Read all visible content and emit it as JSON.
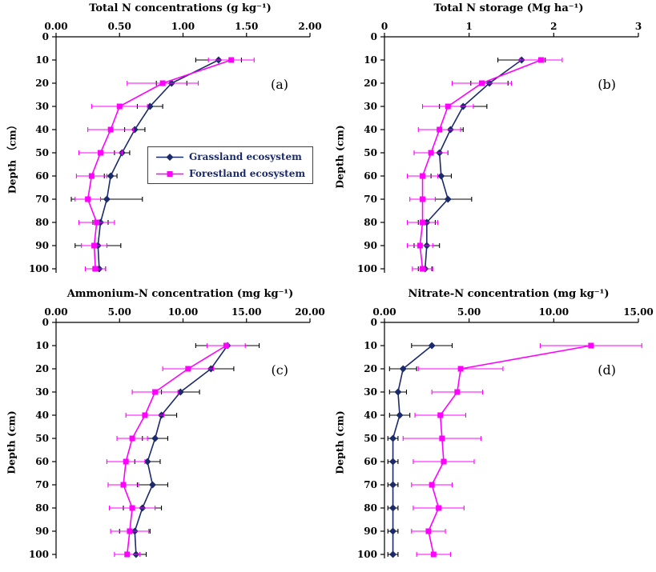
{
  "colors": {
    "grassland": "#1b2a6b",
    "forestland": "#ff00ff",
    "legend_text": "#1b2a6b",
    "axis": "#000000"
  },
  "chart_data": [
    {
      "type": "line",
      "panel_label": "(a)",
      "title": "Total N concentrations (g kg⁻¹)",
      "ylabel": "Depth （cm）",
      "xlim": [
        0,
        2
      ],
      "xticks": [
        {
          "v": 0,
          "label": "0.00"
        },
        {
          "v": 0.5,
          "label": "0.50"
        },
        {
          "v": 1,
          "label": "1.00"
        },
        {
          "v": 1.5,
          "label": "1.50"
        },
        {
          "v": 2,
          "label": "2.00"
        }
      ],
      "yticks": [
        0,
        10,
        20,
        30,
        40,
        50,
        60,
        70,
        80,
        90,
        100
      ],
      "depths": [
        10,
        20,
        30,
        40,
        50,
        60,
        70,
        80,
        90,
        100
      ],
      "series": [
        {
          "name": "Grassland ecosystem",
          "marker": "diamond",
          "color": "#1b2a6b",
          "error_color": "#000000",
          "values": [
            1.28,
            0.91,
            0.74,
            0.62,
            0.52,
            0.43,
            0.4,
            0.35,
            0.33,
            0.34
          ],
          "errors": [
            0.18,
            0.12,
            0.1,
            0.08,
            0.06,
            0.05,
            0.28,
            0.06,
            0.18,
            0.05
          ]
        },
        {
          "name": "Forestland ecosystem",
          "marker": "square",
          "color": "#ff00ff",
          "error_color": "#ff00ff",
          "values": [
            1.38,
            0.84,
            0.5,
            0.43,
            0.35,
            0.28,
            0.25,
            0.32,
            0.3,
            0.31
          ],
          "errors": [
            0.18,
            0.28,
            0.22,
            0.18,
            0.17,
            0.12,
            0.1,
            0.14,
            0.1,
            0.08
          ]
        }
      ]
    },
    {
      "type": "line",
      "panel_label": "(b)",
      "title": "Total N storage (Mg ha⁻¹)",
      "ylabel": "Depth (cm)",
      "xlim": [
        0,
        3
      ],
      "xticks": [
        {
          "v": 0,
          "label": "0"
        },
        {
          "v": 1,
          "label": "1"
        },
        {
          "v": 2,
          "label": "2"
        },
        {
          "v": 3,
          "label": "3"
        }
      ],
      "yticks": [
        0,
        10,
        20,
        30,
        40,
        50,
        60,
        70,
        80,
        90,
        100
      ],
      "depths": [
        10,
        20,
        30,
        40,
        50,
        60,
        70,
        80,
        90,
        100
      ],
      "series": [
        {
          "name": "Grassland ecosystem",
          "marker": "diamond",
          "color": "#1b2a6b",
          "error_color": "#000000",
          "values": [
            1.62,
            1.24,
            0.93,
            0.78,
            0.65,
            0.67,
            0.75,
            0.5,
            0.5,
            0.48
          ],
          "errors": [
            0.28,
            0.22,
            0.28,
            0.15,
            0.1,
            0.12,
            0.28,
            0.1,
            0.15,
            0.08
          ]
        },
        {
          "name": "Forestland ecosystem",
          "marker": "square",
          "color": "#ff00ff",
          "error_color": "#ff00ff",
          "values": [
            1.85,
            1.15,
            0.75,
            0.65,
            0.55,
            0.45,
            0.45,
            0.45,
            0.42,
            0.45
          ],
          "errors": [
            0.25,
            0.35,
            0.3,
            0.25,
            0.2,
            0.18,
            0.15,
            0.18,
            0.15,
            0.12
          ]
        }
      ]
    },
    {
      "type": "line",
      "panel_label": "(c)",
      "title": "Ammonium-N concentration (mg kg⁻¹)",
      "ylabel": "Depth (cm)",
      "xlim": [
        0,
        20
      ],
      "xticks": [
        {
          "v": 0,
          "label": "0.00"
        },
        {
          "v": 5,
          "label": "5.00"
        },
        {
          "v": 10,
          "label": "10.00"
        },
        {
          "v": 15,
          "label": "15.00"
        },
        {
          "v": 20,
          "label": "20.00"
        }
      ],
      "yticks": [
        0,
        10,
        20,
        30,
        40,
        50,
        60,
        70,
        80,
        90,
        100
      ],
      "depths": [
        10,
        20,
        30,
        40,
        50,
        60,
        70,
        80,
        90,
        100
      ],
      "series": [
        {
          "name": "Grassland ecosystem",
          "marker": "diamond",
          "color": "#1b2a6b",
          "error_color": "#000000",
          "values": [
            13.5,
            12.2,
            9.8,
            8.3,
            7.8,
            7.2,
            7.6,
            6.8,
            6.2,
            6.3
          ],
          "errors": [
            2.5,
            1.8,
            1.5,
            1.2,
            1.0,
            1.0,
            1.2,
            1.5,
            1.2,
            0.8
          ]
        },
        {
          "name": "Forestland ecosystem",
          "marker": "square",
          "color": "#ff00ff",
          "error_color": "#ff00ff",
          "values": [
            13.4,
            10.4,
            7.8,
            7.0,
            6.0,
            5.5,
            5.3,
            6.0,
            5.8,
            5.6
          ],
          "errors": [
            1.5,
            2.0,
            1.8,
            1.5,
            1.2,
            1.5,
            1.2,
            1.8,
            1.5,
            1.0
          ]
        }
      ]
    },
    {
      "type": "line",
      "panel_label": "(d)",
      "title": "Nitrate-N concentration (mg kg⁻¹)",
      "ylabel": "Depth (cm)",
      "xlim": [
        0,
        15
      ],
      "xticks": [
        {
          "v": 0,
          "label": "0.00"
        },
        {
          "v": 5,
          "label": "5.00"
        },
        {
          "v": 10,
          "label": "10.00"
        },
        {
          "v": 15,
          "label": "15.00"
        }
      ],
      "yticks": [
        0,
        10,
        20,
        30,
        40,
        50,
        60,
        70,
        80,
        90,
        100
      ],
      "depths": [
        10,
        20,
        30,
        40,
        50,
        60,
        70,
        80,
        90,
        100
      ],
      "series": [
        {
          "name": "Grassland ecosystem",
          "marker": "diamond",
          "color": "#1b2a6b",
          "error_color": "#000000",
          "values": [
            2.8,
            1.1,
            0.8,
            0.9,
            0.5,
            0.5,
            0.5,
            0.5,
            0.5,
            0.5
          ],
          "errors": [
            1.2,
            0.8,
            0.5,
            0.6,
            0.3,
            0.3,
            0.3,
            0.3,
            0.3,
            0.3
          ]
        },
        {
          "name": "Forestland ecosystem",
          "marker": "square",
          "color": "#ff00ff",
          "error_color": "#ff00ff",
          "values": [
            12.2,
            4.5,
            4.3,
            3.3,
            3.4,
            3.5,
            2.8,
            3.2,
            2.6,
            2.9
          ],
          "errors": [
            3.0,
            2.5,
            1.5,
            1.5,
            2.3,
            1.8,
            1.2,
            1.5,
            1.0,
            1.0
          ]
        }
      ]
    }
  ]
}
